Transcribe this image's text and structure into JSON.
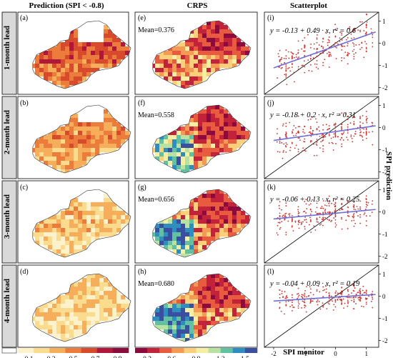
{
  "columns": [
    {
      "title": "Prediction (SPI < -0.8)"
    },
    {
      "title": "CRPS"
    },
    {
      "title": "Scatterplot"
    }
  ],
  "rows": [
    {
      "lead": "1-month lead",
      "pred_tag": "(a)",
      "crps_tag": "(e)",
      "crps_mean": "Mean=0.376",
      "scat_tag": "(i)",
      "equation": "y = -0.13 + 0.49 · x,  r² = 0.6"
    },
    {
      "lead": "2-month lead",
      "pred_tag": "(b)",
      "crps_tag": "(f)",
      "crps_mean": "Mean=0.558",
      "scat_tag": "(j)",
      "equation": "y = -0.18 + 0.2 · x,  r² = 0.31"
    },
    {
      "lead": "3-month lead",
      "pred_tag": "(c)",
      "crps_tag": "(g)",
      "crps_mean": "Mean=0.656",
      "scat_tag": "(k)",
      "equation": "y = -0.06 + 0.13 · x,  r² = 0.25"
    },
    {
      "lead": "4-month lead",
      "pred_tag": "(d)",
      "crps_tag": "(h)",
      "crps_mean": "Mean=0.680",
      "scat_tag": "(l)",
      "equation": "y = -0.04 + 0.09 · x,  r² = 0.19"
    }
  ],
  "chart_data": [
    {
      "type": "heatmap",
      "panels": [
        "(a)",
        "(b)",
        "(c)",
        "(d)"
      ],
      "colorbar": {
        "ticks": [
          "0.1",
          "0.3",
          "0.5",
          "0.7",
          "0.9"
        ],
        "colors": [
          "#fdf2cc",
          "#fbdc8e",
          "#f6ae5b",
          "#ec7c3c",
          "#d84a2c",
          "#b1173a",
          "#8a0c3d"
        ]
      },
      "spatial_mean": [
        0.6,
        0.45,
        0.3,
        0.25
      ]
    },
    {
      "type": "heatmap",
      "panels": [
        "(e)",
        "(f)",
        "(g)",
        "(h)"
      ],
      "means": [
        0.376,
        0.558,
        0.656,
        0.68
      ],
      "colorbar": {
        "ticks": [
          "0.3",
          "0.6",
          "0.9",
          "1.2",
          "1.5"
        ],
        "colors": [
          "#8d0a3f",
          "#c2233a",
          "#e85b3f",
          "#f59a55",
          "#fccf7a",
          "#f4efa2",
          "#b9e2a0",
          "#62c1a0",
          "#2f8ec0",
          "#3a4fa0"
        ]
      }
    },
    {
      "type": "scatter",
      "panels": [
        "(i)",
        "(j)",
        "(k)",
        "(l)"
      ],
      "xlabel": "SPI monitor",
      "ylabel": "SPI prediction",
      "xlim": [
        -2.3,
        1.4
      ],
      "ylim": [
        -2.3,
        1.4
      ],
      "xticks": [
        "-2",
        "-1",
        "0",
        "1"
      ],
      "yticks": [
        "-2",
        "-1",
        "0",
        "1"
      ],
      "fits": [
        {
          "intercept": -0.13,
          "slope": 0.49,
          "r2": 0.6
        },
        {
          "intercept": -0.18,
          "slope": 0.2,
          "r2": 0.31
        },
        {
          "intercept": -0.06,
          "slope": 0.13,
          "r2": 0.25
        },
        {
          "intercept": -0.04,
          "slope": 0.09,
          "r2": 0.19
        }
      ],
      "series": [
        {
          "values": "~300 red points per panel scattered about the blue regression line, plus black 1:1 reference line"
        }
      ]
    }
  ]
}
